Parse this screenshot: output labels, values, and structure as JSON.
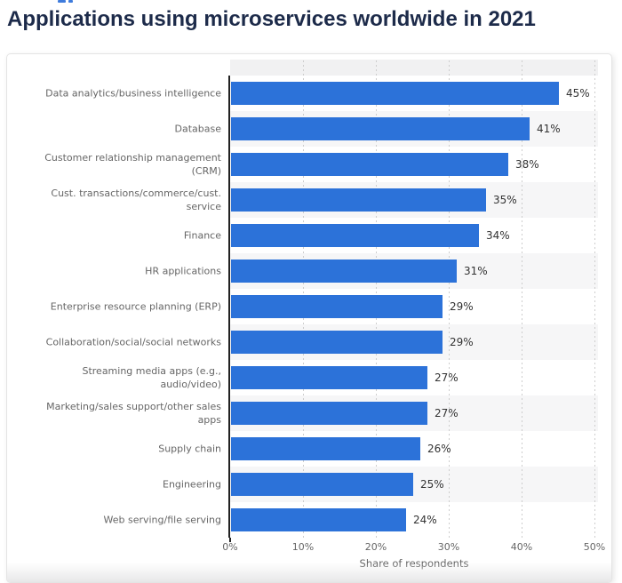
{
  "page": {
    "title": "Applications using microservices worldwide in 2021"
  },
  "decorations": {
    "cutoff_fragment_color": "#3e7bdc"
  },
  "chart_data": {
    "type": "bar",
    "orientation": "horizontal",
    "title": "Applications using microservices worldwide in 2021",
    "categories": [
      "Data analytics/business intelligence",
      "Database",
      "Customer relationship management\n(CRM)",
      "Cust. transactions/commerce/cust.\nservice",
      "Finance",
      "HR applications",
      "Enterprise resource planning (ERP)",
      "Collaboration/social/social networks",
      "Streaming media apps (e.g., audio/video)",
      "Marketing/sales support/other sales\napps",
      "Supply chain",
      "Engineering",
      "Web serving/file serving"
    ],
    "values": [
      45,
      41,
      38,
      35,
      34,
      31,
      29,
      29,
      27,
      27,
      26,
      25,
      24
    ],
    "value_suffix": "%",
    "value_labels": [
      "45%",
      "41%",
      "38%",
      "35%",
      "34%",
      "31%",
      "29%",
      "29%",
      "27%",
      "27%",
      "26%",
      "25%",
      "24%"
    ],
    "xlabel": "Share of respondents",
    "x_ticks": [
      "0%",
      "10%",
      "20%",
      "30%",
      "40%",
      "50%"
    ],
    "xlim": [
      0,
      50
    ],
    "grid": "vertical-dashed",
    "row_striping": "alternating, first row white",
    "colors": {
      "bar": "#2c72d9",
      "row_stripe": "#f6f6f7",
      "plot_top_strip": "#f1f1f2",
      "gridline": "#cdcdcd",
      "axis_line": "#222222",
      "category_label": "#666666",
      "value_label": "#333333",
      "tick_label": "#666666",
      "title": "#1d2b4a"
    }
  }
}
